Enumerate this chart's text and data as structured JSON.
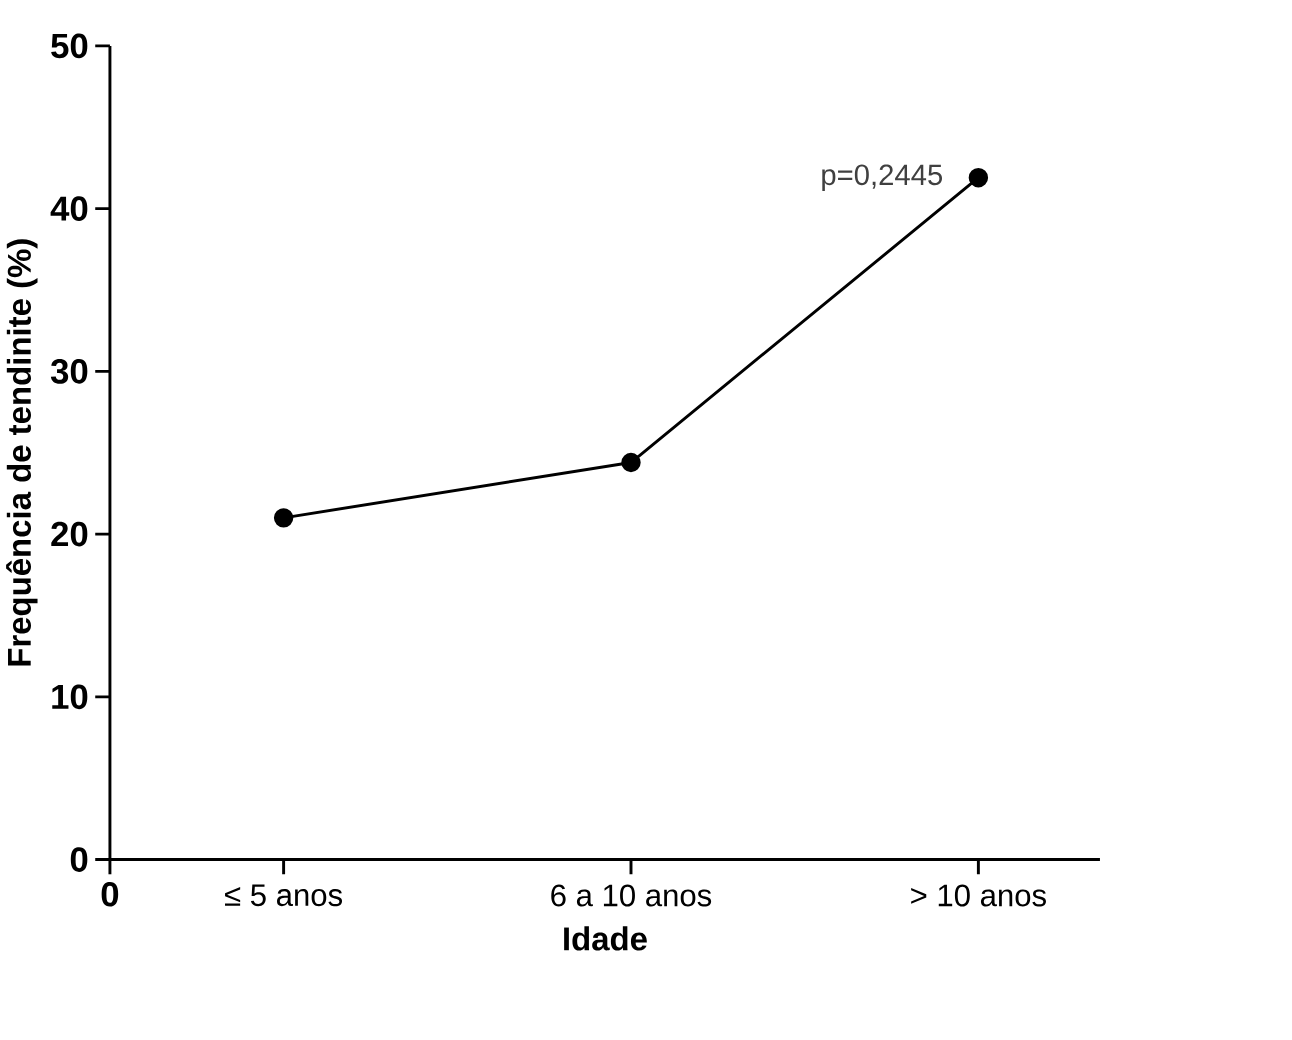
{
  "chart_data": {
    "type": "line",
    "xlabel": "Idade",
    "ylabel": "Frequência de tendinite (%)",
    "categories": [
      "≤ 5 anos",
      "6 a 10 anos",
      "> 10 anos"
    ],
    "ylim": [
      0,
      50
    ],
    "yticks": [
      0,
      10,
      20,
      30,
      40,
      50
    ],
    "series": [
      {
        "color": "#000000",
        "values": [
          21.0,
          24.4,
          41.9
        ]
      }
    ],
    "marker": "circle",
    "line_style": "solid",
    "grid": false,
    "legend": false,
    "annotations": [
      "0",
      {
        "text": "p=0,2445",
        "x": "> 10 anos",
        "y": 41.9
      }
    ]
  }
}
